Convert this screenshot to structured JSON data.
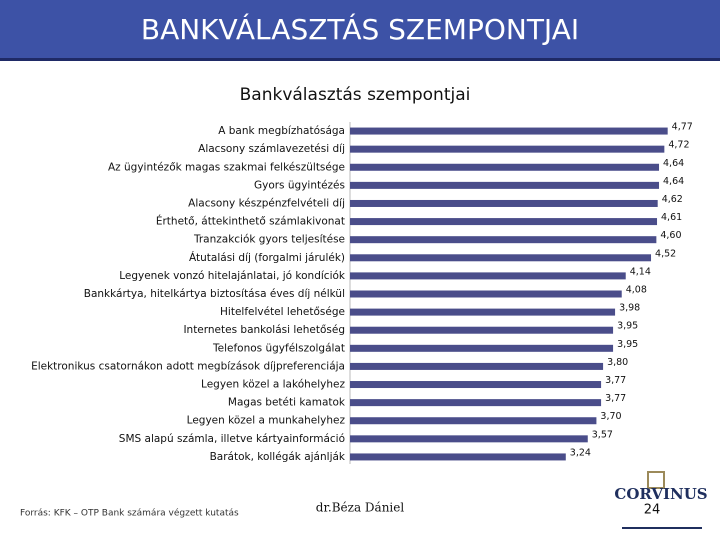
{
  "header": {
    "title": "BANKVÁLASZTÁS SZEMPONTJAI"
  },
  "chart_data": {
    "type": "bar",
    "orientation": "horizontal",
    "title": "Bankválasztás szempontjai",
    "categories": [
      "A bank megbízhatósága",
      "Alacsony számlavezetési díj",
      "Az ügyintézők magas szakmai felkészültsége",
      "Gyors ügyintézés",
      "Alacsony készpénzfelvételi díj",
      "Érthető, áttekinthető számlakivonat",
      "Tranzakciók gyors teljesítése",
      "Átutalási díj (forgalmi járulék)",
      "Legyenek vonzó hitelajánlatai, jó kondíciók",
      "Bankkártya, hitelkártya biztosítása éves díj nélkül",
      "Hitelfelvétel lehetősége",
      "Internetes bankolási lehetőség",
      "Telefonos ügyfélszolgálat",
      "Elektronikus csatornákon adott megbízások díjpreferenciája",
      "Legyen közel a lakóhelyhez",
      "Magas betéti kamatok",
      "Legyen közel a munkahelyhez",
      "SMS alapú számla, illetve kártyainformáció",
      "Barátok, kollégák ajánlják"
    ],
    "values": [
      4.77,
      4.72,
      4.64,
      4.64,
      4.62,
      4.61,
      4.6,
      4.52,
      4.14,
      4.08,
      3.98,
      3.95,
      3.95,
      3.8,
      3.77,
      3.77,
      3.7,
      3.57,
      3.24
    ],
    "value_labels": [
      "4,77",
      "4,72",
      "4,64",
      "4,64",
      "4,62",
      "4,61",
      "4,60",
      "4,52",
      "4,14",
      "4,08",
      "3,98",
      "3,95",
      "3,95",
      "3,80",
      "3,77",
      "3,77",
      "3,70",
      "3,57",
      "3,24"
    ],
    "color": "#4a4d8a",
    "xlim": [
      0,
      5
    ]
  },
  "footer": {
    "source": "Forrás: KFK – OTP Bank számára végzett kutatás",
    "author": "dr.Béza Dániel",
    "page": "24",
    "logo": "CORVINUS"
  }
}
